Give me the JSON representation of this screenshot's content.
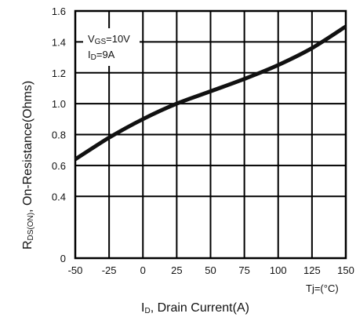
{
  "chart_data": {
    "type": "line",
    "xlim": [
      -50,
      150
    ],
    "ylim": [
      0,
      1.6
    ],
    "x_ticks": [
      "-50",
      "-25",
      "0",
      "25",
      "50",
      "75",
      "100",
      "125",
      "150"
    ],
    "y_ticks": [
      "0",
      "0.4",
      "0.6",
      "0.8",
      "1.0",
      "1.2",
      "1.4",
      "1.6"
    ],
    "y_tick_values": [
      0,
      0.4,
      0.6,
      0.8,
      1.0,
      1.2,
      1.4,
      1.6
    ],
    "x_unit_label": "Tj=(°C)",
    "xlabel": {
      "main": "I",
      "sub": "D",
      "rest": ", Drain Current(A)"
    },
    "ylabel": {
      "main": "R",
      "sub": "DS(ON)",
      "rest": ",   On-Resistance(Ohms)"
    },
    "annotation": {
      "line1": {
        "main": "V",
        "sub": "GS",
        "rest": "=10V"
      },
      "line2": {
        "main": "I",
        "sub": "D",
        "rest": "=9A"
      }
    },
    "grid": true,
    "series": [
      {
        "x": [
          -50,
          -25,
          0,
          25,
          50,
          75,
          100,
          125,
          150
        ],
        "y": [
          0.64,
          0.78,
          0.9,
          1.0,
          1.08,
          1.16,
          1.25,
          1.36,
          1.5
        ]
      }
    ],
    "line_color": "#111111"
  }
}
